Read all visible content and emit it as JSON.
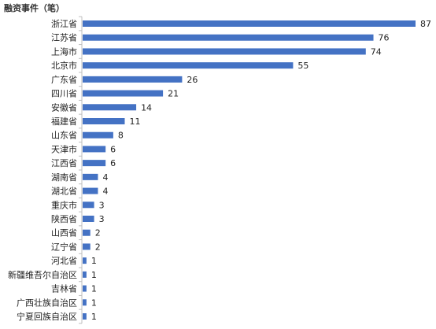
{
  "chart_data": {
    "type": "bar",
    "orientation": "horizontal",
    "title": "融资事件（笔）",
    "categories": [
      "浙江省",
      "江苏省",
      "上海市",
      "北京市",
      "广东省",
      "四川省",
      "安徽省",
      "福建省",
      "山东省",
      "天津市",
      "江西省",
      "湖南省",
      "湖北省",
      "重庆市",
      "陕西省",
      "山西省",
      "辽宁省",
      "河北省",
      "新疆维吾尔自治区",
      "吉林省",
      "广西壮族自治区",
      "宁夏回族自治区"
    ],
    "values": [
      87,
      76,
      74,
      55,
      26,
      21,
      14,
      11,
      8,
      6,
      6,
      4,
      4,
      3,
      3,
      2,
      2,
      1,
      1,
      1,
      1,
      1
    ],
    "xlim": [
      0,
      87
    ],
    "grid": false,
    "legend": "none",
    "bar_color": "#4472c4",
    "axis_color": "#bfbfbf"
  }
}
